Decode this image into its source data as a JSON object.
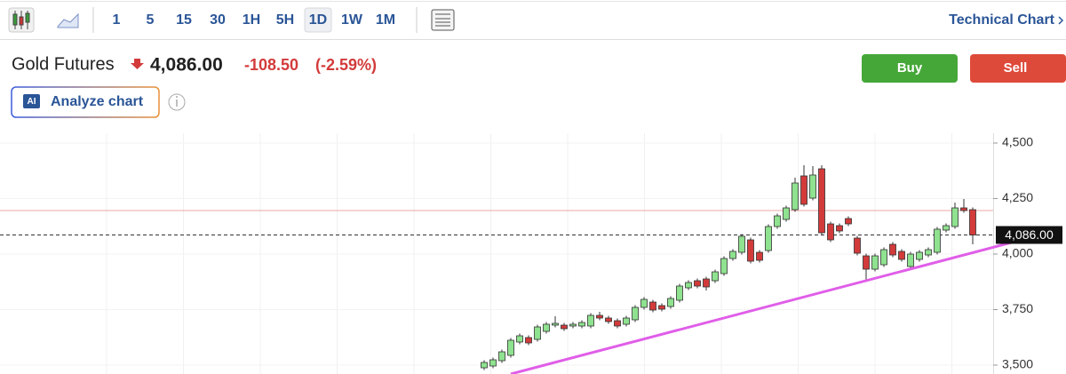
{
  "toolbar": {
    "intervals": [
      "1",
      "5",
      "15",
      "30",
      "1H",
      "5H",
      "1D",
      "1W",
      "1M"
    ],
    "active_interval": 6,
    "technical_chart": "Technical Chart"
  },
  "quote": {
    "name": "Gold Futures",
    "price": "4,086.00",
    "change": "-108.50",
    "change_pct": "(-2.59%)"
  },
  "actions": {
    "buy": "Buy",
    "sell": "Sell",
    "analyze": "Analyze chart",
    "ai_badge": "AI"
  },
  "chart_data": {
    "type": "candlestick",
    "open": [
      3488,
      3496,
      3520,
      3544,
      3604,
      3624,
      3616,
      3652,
      3680,
      3680,
      3676,
      3676,
      3676,
      3724,
      3712,
      3700,
      3684,
      3704,
      3760,
      3784,
      3768,
      3764,
      3792,
      3848,
      3880,
      3888,
      3880,
      3912,
      3980,
      4008,
      4064,
      4008,
      4016,
      4124,
      4156,
      4200,
      4352,
      4252,
      4384,
      4136,
      4128,
      4160,
      4072,
      3992,
      3932,
      3952,
      4044,
      4012,
      3944,
      3976,
      3996,
      4008,
      4108,
      4124,
      4208,
      4200
    ],
    "high": [
      3522,
      3534,
      3570,
      3622,
      3642,
      3634,
      3682,
      3694,
      3720,
      3690,
      3694,
      3702,
      3734,
      3740,
      3722,
      3710,
      3722,
      3770,
      3806,
      3794,
      3778,
      3810,
      3866,
      3882,
      3890,
      3898,
      3930,
      3990,
      4022,
      4090,
      4074,
      4018,
      4134,
      4182,
      4218,
      4344,
      4400,
      4396,
      4400,
      4146,
      4138,
      4170,
      4082,
      4002,
      4002,
      4030,
      4054,
      4022,
      4010,
      4018,
      4030,
      4122,
      4138,
      4232,
      4248,
      4210
    ],
    "low": [
      3478,
      3486,
      3510,
      3534,
      3594,
      3590,
      3606,
      3642,
      3670,
      3654,
      3666,
      3666,
      3666,
      3702,
      3686,
      3666,
      3674,
      3694,
      3750,
      3738,
      3742,
      3754,
      3782,
      3838,
      3846,
      3836,
      3870,
      3902,
      3970,
      3998,
      3958,
      3962,
      4006,
      4114,
      4146,
      4190,
      4214,
      4242,
      4086,
      4054,
      4094,
      4126,
      3994,
      3880,
      3922,
      3942,
      3986,
      3966,
      3934,
      3966,
      3986,
      3998,
      4098,
      4114,
      4186,
      4044
    ],
    "close": [
      3512,
      3524,
      3560,
      3612,
      3632,
      3600,
      3672,
      3684,
      3688,
      3664,
      3684,
      3692,
      3724,
      3712,
      3696,
      3676,
      3712,
      3760,
      3796,
      3748,
      3752,
      3800,
      3856,
      3872,
      3856,
      3852,
      3920,
      3980,
      4012,
      4080,
      3968,
      3972,
      4124,
      4172,
      4208,
      4320,
      4224,
      4356,
      4096,
      4064,
      4104,
      4136,
      4004,
      3932,
      3992,
      4020,
      3996,
      3976,
      4000,
      4008,
      4020,
      4112,
      4128,
      4208,
      4196,
      4086
    ],
    "up_color": "#8fe28f",
    "down_color": "#d33b3b",
    "ylim": [
      3460,
      4544
    ],
    "yticks": [
      {
        "value": 3500,
        "label": "3,500"
      },
      {
        "value": 3750,
        "label": "3,750"
      },
      {
        "value": 4000,
        "label": "4,000"
      },
      {
        "value": 4250,
        "label": "4,250"
      },
      {
        "value": 4500,
        "label": "4,500"
      }
    ],
    "grid": true,
    "last_price": {
      "value": 4086,
      "label": "4,086.00"
    },
    "reference_line": 4196,
    "trendline": {
      "x": [
        3,
        62
      ],
      "y": [
        3460,
        4080
      ],
      "color": "#e05ee8"
    }
  }
}
